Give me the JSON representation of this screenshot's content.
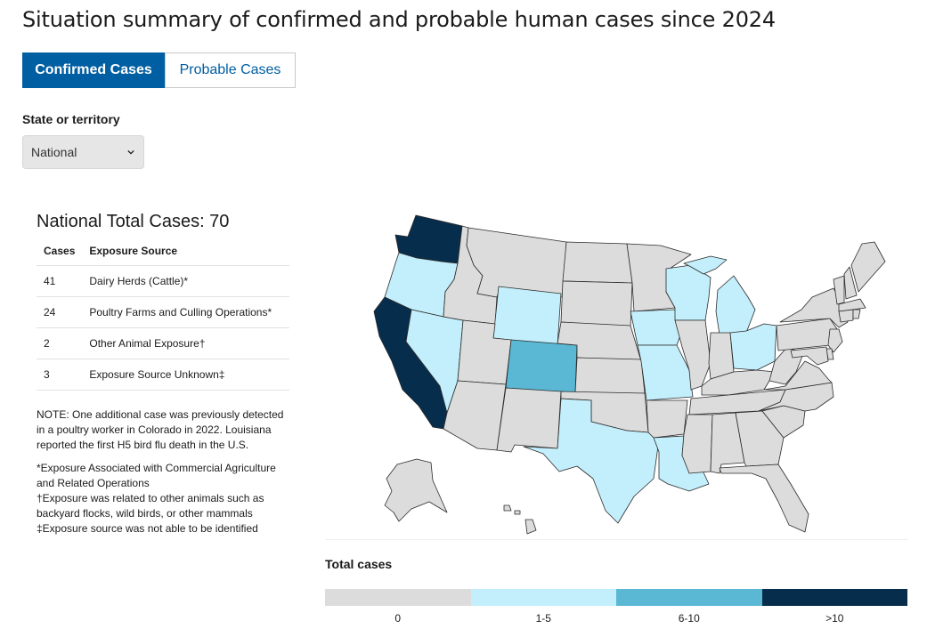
{
  "page": {
    "title": "Situation summary of confirmed and probable human cases since 2024"
  },
  "tabs": [
    {
      "label": "Confirmed Cases",
      "active": true
    },
    {
      "label": "Probable Cases",
      "active": false
    }
  ],
  "filter": {
    "label": "State or territory",
    "selected": "National"
  },
  "summary": {
    "heading": "National Total Cases: 70",
    "columns": [
      "Cases",
      "Exposure Source"
    ],
    "rows": [
      {
        "cases": "41",
        "source": "Dairy Herds (Cattle)*"
      },
      {
        "cases": "24",
        "source": "Poultry Farms and Culling Operations*"
      },
      {
        "cases": "2",
        "source": "Other Animal Exposure†"
      },
      {
        "cases": "3",
        "source": "Exposure Source Unknown‡"
      }
    ],
    "note": "NOTE: One additional case was previously detected in a poultry worker in Colorado in 2022. Louisiana reported the first H5 bird flu death in the U.S.",
    "footnotes": [
      "*Exposure Associated with Commercial Agriculture and Related Operations",
      "†Exposure was related to other animals such as backyard flocks, wild birds, or other mammals",
      "‡Exposure source was not able to be identified"
    ]
  },
  "map": {
    "colors": {
      "0": "#dcdcdc",
      "1-5": "#c3eefb",
      "6-10": "#5ab8d4",
      ">10": "#062d4c"
    },
    "state_categories": {
      "WA": ">10",
      "OR": "1-5",
      "CA": ">10",
      "NV": "1-5",
      "ID": "0",
      "MT": "0",
      "WY": "1-5",
      "UT": "0",
      "AZ": "0",
      "CO": "6-10",
      "NM": "0",
      "ND": "0",
      "SD": "0",
      "NE": "0",
      "KS": "0",
      "OK": "0",
      "TX": "1-5",
      "MN": "0",
      "IA": "1-5",
      "MO": "1-5",
      "AR": "0",
      "LA": "1-5",
      "WI": "1-5",
      "IL": "0",
      "MI": "1-5",
      "IN": "0",
      "OH": "1-5",
      "KY": "0",
      "TN": "0",
      "MS": "0",
      "AL": "0",
      "GA": "0",
      "FL": "0",
      "SC": "0",
      "NC": "0",
      "VA": "0",
      "WV": "0",
      "PA": "0",
      "NY": "0",
      "VT": "0",
      "NH": "0",
      "ME": "0",
      "MA": "0",
      "CT": "0",
      "RI": "0",
      "NJ": "0",
      "DE": "0",
      "MD": "0",
      "AK": "0",
      "HI": "0"
    }
  },
  "legend": {
    "title": "Total cases",
    "items": [
      {
        "label": "0",
        "color": "#dcdcdc"
      },
      {
        "label": "1-5",
        "color": "#c3eefb"
      },
      {
        "label": "6-10",
        "color": "#5ab8d4"
      },
      {
        "label": ">10",
        "color": "#062d4c"
      }
    ]
  }
}
